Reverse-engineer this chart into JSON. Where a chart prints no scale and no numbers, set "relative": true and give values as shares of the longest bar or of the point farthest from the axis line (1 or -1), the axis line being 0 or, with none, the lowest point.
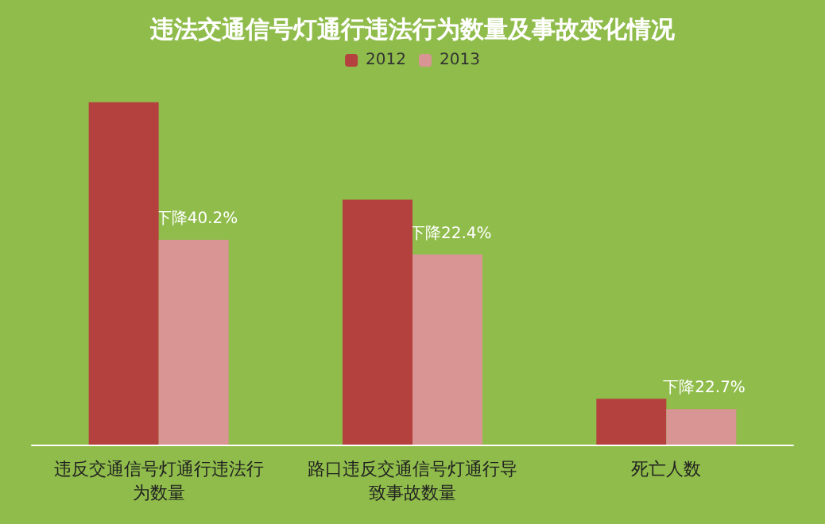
{
  "chart_data": {
    "type": "bar",
    "title": "违法交通信号灯通行违法行为数量及事故变化情况",
    "categories": [
      "违反交通信号灯通行违法行为数量",
      "路口违反交通信号灯通行导致事故数量",
      "死亡人数"
    ],
    "relative": true,
    "legend": "top",
    "series": [
      {
        "name": "2012",
        "color": "#b5413f",
        "values": [
          1,
          0.715,
          0.134
        ]
      },
      {
        "name": "2013",
        "color": "#d99594",
        "values": [
          0.598,
          0.555,
          0.104
        ]
      }
    ],
    "annotations": [
      {
        "text": "下降40.2%",
        "x": "违反交通信号灯通行违法行为数量",
        "y": 0.598
      },
      {
        "text": "下降22.4%",
        "x": "路口违反交通信号灯通行导致事故数量",
        "y": 0.555
      },
      {
        "text": "下降22.7%",
        "x": "死亡人数",
        "y": 0.104
      }
    ]
  }
}
